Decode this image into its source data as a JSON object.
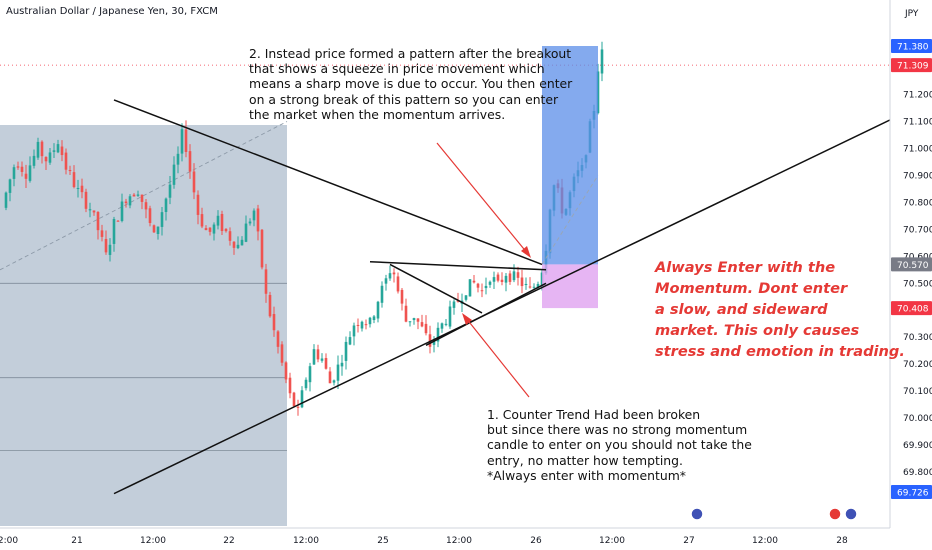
{
  "header": {
    "title": "Australian Dollar / Japanese Yen, 30, FXCM",
    "currency": "JPY"
  },
  "annotations": {
    "note1": "1. Counter Trend Had been broken\nbut since there was no strong momentum\ncandle to enter on you should not take the\nentry, no matter how tempting.\n*Always enter with momentum*",
    "note2": "2. Instead price formed a pattern after the breakout\nthat shows a squeeze in price movement which\nmeans a sharp move is due to occur. You then enter\non a strong break of this pattern so you can enter\nthe market when the momentum arrives.",
    "note3": "Always Enter with the\nMomentum. Dont enter\na slow, and sideward\nmarket. This only causes\nstress and emotion in trading."
  },
  "chart_data": {
    "type": "candlestick",
    "title": "Australian Dollar / Japanese Yen, 30, FXCM",
    "y_range": [
      69.67,
      71.52
    ],
    "y_ticks": [
      "71.300",
      "71.200",
      "71.100",
      "71.000",
      "70.900",
      "70.800",
      "70.700",
      "70.600",
      "70.500",
      "70.400",
      "70.300",
      "70.200",
      "70.100",
      "70.000",
      "69.900",
      "69.800"
    ],
    "x_ticks": [
      "2:00",
      "21",
      "12:00",
      "22",
      "12:00",
      "25",
      "12:00",
      "26",
      "12:00",
      "27",
      "12:00",
      "28"
    ],
    "price_labels": [
      {
        "value": "71.380",
        "color": "#2962ff"
      },
      {
        "value": "71.309",
        "color": "#f23645"
      },
      {
        "value": "70.570",
        "color": "#787b86"
      },
      {
        "value": "70.408",
        "color": "#f23645"
      },
      {
        "value": "69.726",
        "color": "#2962ff"
      }
    ],
    "path_points": [
      [
        0,
        70.78
      ],
      [
        1.5,
        70.86
      ],
      [
        3.5,
        70.96
      ],
      [
        6,
        70.91
      ],
      [
        9,
        71.0
      ],
      [
        11.5,
        70.95
      ],
      [
        14,
        71.03
      ],
      [
        16,
        70.93
      ],
      [
        19,
        70.84
      ],
      [
        22,
        70.78
      ],
      [
        24.5,
        70.68
      ],
      [
        26,
        70.6
      ],
      [
        28,
        70.72
      ],
      [
        31,
        70.82
      ],
      [
        34,
        70.85
      ],
      [
        36.5,
        70.74
      ],
      [
        38,
        70.67
      ],
      [
        40,
        70.77
      ],
      [
        42.5,
        70.89
      ],
      [
        44,
        70.97
      ],
      [
        45.3,
        71.07
      ],
      [
        47,
        70.92
      ],
      [
        49,
        70.76
      ],
      [
        51.5,
        70.68
      ],
      [
        54,
        70.73
      ],
      [
        57,
        70.67
      ],
      [
        59,
        70.64
      ],
      [
        61,
        70.71
      ],
      [
        63,
        70.77
      ],
      [
        64.5,
        70.62
      ],
      [
        66,
        70.45
      ],
      [
        68,
        70.32
      ],
      [
        70,
        70.2
      ],
      [
        72,
        70.08
      ],
      [
        74,
        70.02
      ],
      [
        76,
        70.15
      ],
      [
        78,
        70.25
      ],
      [
        80,
        70.22
      ],
      [
        82,
        70.13
      ],
      [
        84,
        70.19
      ],
      [
        86,
        70.27
      ],
      [
        88,
        70.35
      ],
      [
        90,
        70.37
      ],
      [
        92,
        70.35
      ],
      [
        94,
        70.44
      ],
      [
        96,
        70.51
      ],
      [
        97.5,
        70.57
      ],
      [
        99,
        70.47
      ],
      [
        101,
        70.36
      ],
      [
        103,
        70.38
      ],
      [
        105,
        70.33
      ],
      [
        107,
        70.27
      ],
      [
        109,
        70.32
      ],
      [
        111,
        70.37
      ],
      [
        113,
        70.41
      ],
      [
        114.5,
        70.45
      ],
      [
        116,
        70.48
      ],
      [
        118,
        70.5
      ],
      [
        120,
        70.47
      ],
      [
        122,
        70.53
      ],
      [
        124,
        70.49
      ],
      [
        126,
        70.54
      ],
      [
        128,
        70.52
      ],
      [
        130,
        70.5
      ],
      [
        132,
        70.47
      ],
      [
        134,
        70.51
      ],
      [
        135.5,
        70.58
      ],
      [
        136.5,
        70.7
      ],
      [
        137.5,
        70.88
      ],
      [
        139,
        70.83
      ],
      [
        140.5,
        70.75
      ],
      [
        142,
        70.83
      ],
      [
        143.5,
        70.9
      ],
      [
        145,
        70.92
      ],
      [
        146.5,
        71.04
      ],
      [
        148,
        71.15
      ],
      [
        149,
        71.3
      ],
      [
        150,
        71.35
      ]
    ],
    "trend_lines": [
      {
        "from": [
          28,
          71.18
        ],
        "to": [
          135,
          70.57
        ]
      },
      {
        "from": [
          28,
          69.72
        ],
        "to": [
          224,
          71.12
        ]
      },
      {
        "from": [
          92,
          70.58
        ],
        "to": [
          136,
          70.55
        ]
      },
      {
        "from": [
          106,
          70.27
        ],
        "to": [
          136,
          70.5
        ]
      },
      {
        "from": [
          97,
          70.57
        ],
        "to": [
          120,
          70.39
        ]
      }
    ],
    "position": {
      "entry": 70.57,
      "target": 71.38,
      "stop": 70.408,
      "start_index": 135,
      "end_index": 149
    }
  }
}
